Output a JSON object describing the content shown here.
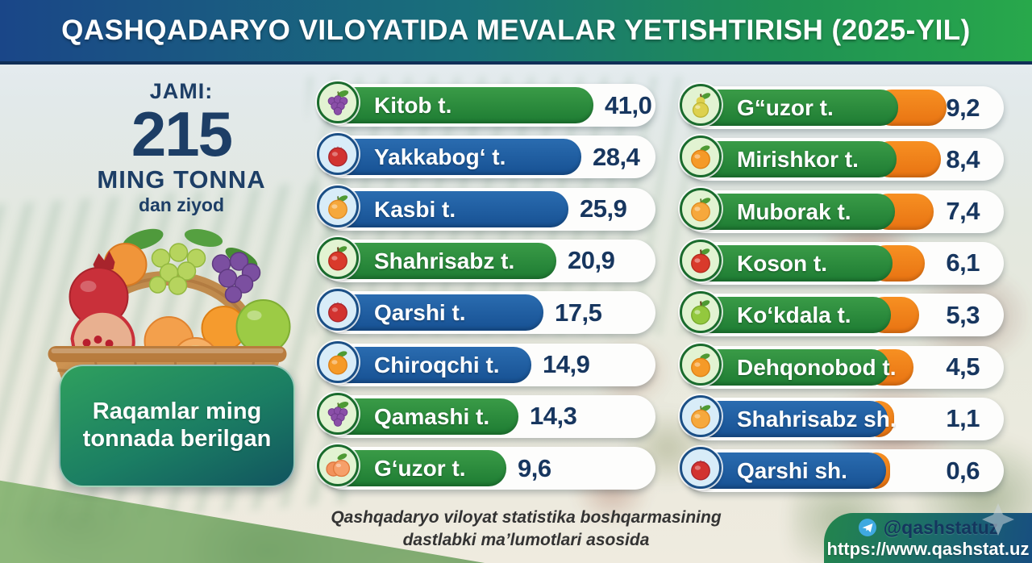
{
  "header": {
    "title": "QASHQADARYO VILOYATIDA MEVALAR YETISHTIRISH (2025-YIL)"
  },
  "summary": {
    "jami_label": "JAMI:",
    "total_value": "215",
    "total_unit": "MING TONNA",
    "total_suffix": "dan ziyod",
    "note": "Raqamlar ming tonnada berilgan"
  },
  "footer": {
    "source_line1": "Qashqadaryo viloyat statistika boshqarmasining",
    "source_line2": "dastlabki ma’lumotlari asosida"
  },
  "contact": {
    "telegram_handle": "@qashstatuz",
    "website": "https://www.qashstat.uz",
    "telegram_icon": "telegram-paper-plane"
  },
  "colors": {
    "bar_green": "#2e8b3c",
    "bar_blue": "#1d5fa6",
    "bar_orange": "#f28118",
    "value_text": "#17365f",
    "header_gradient_left": "#1a4688",
    "header_gradient_right": "#28a84b",
    "note_box_green": "#1b7e63",
    "title_text": "#ffffff"
  },
  "chart_data": {
    "type": "bar",
    "title": "QASHQADARYO VILOYATIDA MEVALAR YETISHTIRISH (2025-YIL)",
    "unit": "ming tonna",
    "total_thousand_tonnes": 215,
    "legend_position": "none",
    "grid": false,
    "categories": [
      "Kitob t.",
      "Yakkabog‘ t.",
      "Kasbi t.",
      "Shahrisabz t.",
      "Qarshi t.",
      "Chiroqchi t.",
      "Qamashi t.",
      "G‘uzor t.",
      "G“uzor t.",
      "Mirishkor t.",
      "Muborak t.",
      "Koson t.",
      "Ko‘kdala t.",
      "Dehqonobod t.",
      "Shahrisabz sh.",
      "Qarshi sh."
    ],
    "values": [
      41.0,
      28.4,
      25.9,
      20.9,
      17.5,
      14.9,
      14.3,
      9.6,
      9.2,
      8.4,
      7.4,
      6.1,
      5.3,
      4.5,
      1.1,
      0.6
    ],
    "columns": {
      "left": [
        {
          "label": "Kitob t.",
          "value": 41.0,
          "display": "41,0",
          "color": "green",
          "icon": "grapes"
        },
        {
          "label": "Yakkabog‘ t.",
          "value": 28.4,
          "display": "28,4",
          "color": "blue",
          "icon": "pomegranate"
        },
        {
          "label": "Kasbi t.",
          "value": 25.9,
          "display": "25,9",
          "color": "blue",
          "icon": "apricot"
        },
        {
          "label": "Shahrisabz t.",
          "value": 20.9,
          "display": "20,9",
          "color": "green",
          "icon": "apple-red"
        },
        {
          "label": "Qarshi t.",
          "value": 17.5,
          "display": "17,5",
          "color": "blue",
          "icon": "pomegranate"
        },
        {
          "label": "Chiroqchi t.",
          "value": 14.9,
          "display": "14,9",
          "color": "blue",
          "icon": "orange"
        },
        {
          "label": "Qamashi t.",
          "value": 14.3,
          "display": "14,3",
          "color": "green",
          "icon": "grapes"
        },
        {
          "label": "G‘uzor t.",
          "value": 9.6,
          "display": "9,6",
          "color": "green",
          "icon": "peach"
        }
      ],
      "right": [
        {
          "label": "G“uzor t.",
          "value": 9.2,
          "display": "9,2",
          "color": "green",
          "icon": "pear"
        },
        {
          "label": "Mirishkor t.",
          "value": 8.4,
          "display": "8,4",
          "color": "green",
          "icon": "orange"
        },
        {
          "label": "Muborak t.",
          "value": 7.4,
          "display": "7,4",
          "color": "green",
          "icon": "apricot"
        },
        {
          "label": "Koson t.",
          "value": 6.1,
          "display": "6,1",
          "color": "green",
          "icon": "apple-red"
        },
        {
          "label": "Ko‘kdala t.",
          "value": 5.3,
          "display": "5,3",
          "color": "green",
          "icon": "apple-green"
        },
        {
          "label": "Dehqonobod t.",
          "value": 4.5,
          "display": "4,5",
          "color": "green",
          "icon": "orange"
        },
        {
          "label": "Shahrisabz sh.",
          "value": 1.1,
          "display": "1,1",
          "color": "blue",
          "icon": "apricot"
        },
        {
          "label": "Qarshi sh.",
          "value": 0.6,
          "display": "0,6",
          "color": "blue",
          "icon": "pomegranate"
        }
      ]
    }
  }
}
